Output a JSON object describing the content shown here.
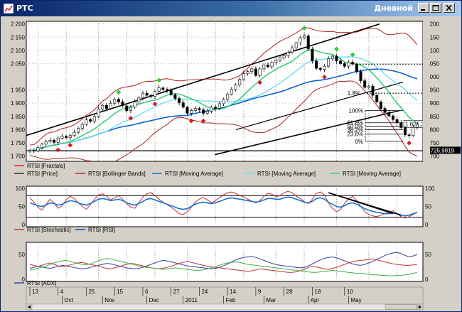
{
  "window": {
    "title": "РТС",
    "mode_label": "Дневной",
    "buttons": [
      "minimize",
      "maximize",
      "close"
    ]
  },
  "colors": {
    "price": "#222222",
    "bollinger": "#b02020",
    "ma_fast": "#33cc77",
    "ma_mid": "#66ddee",
    "ma_slow": "#1060d0",
    "fractal_up": "#22dd22",
    "fractal_down": "#ee1111",
    "stochastic": "#c03030",
    "rsi": "#1a6fd0",
    "adx_blue": "#3040a0",
    "adx_red": "#c03030",
    "adx_green": "#40b040"
  },
  "chart_data": [
    {
      "type": "candlestick",
      "panel": "price",
      "y_ticks": [
        "2 200",
        "2 150",
        "2 100",
        "2 050",
        "1 950",
        "1 900",
        "1 850",
        "1 800",
        "1 750",
        "1 700"
      ],
      "y_ticks_right": [
        "2 200",
        "2 150",
        "2 100",
        "2 050",
        "2 000",
        "1 950",
        "1 900",
        "1 850",
        "1 800",
        "1 750",
        "1 700"
      ],
      "ylim": [
        1680,
        2210
      ],
      "close": [
        1722,
        1720,
        1732,
        1745,
        1755,
        1760,
        1752,
        1768,
        1775,
        1770,
        1778,
        1790,
        1805,
        1820,
        1838,
        1832,
        1850,
        1878,
        1892,
        1880,
        1900,
        1915,
        1905,
        1890,
        1872,
        1885,
        1905,
        1920,
        1938,
        1930,
        1926,
        1945,
        1958,
        1952,
        1948,
        1932,
        1918,
        1902,
        1885,
        1862,
        1872,
        1880,
        1875,
        1862,
        1870,
        1885,
        1880,
        1898,
        1915,
        1935,
        1952,
        1970,
        1990,
        2012,
        2020,
        2030,
        2005,
        2030,
        2045,
        2038,
        2055,
        2062,
        2072,
        2080,
        2092,
        2110,
        2128,
        2148,
        2155,
        2105,
        2060,
        2032,
        2028,
        2040,
        2068,
        2078,
        2060,
        2050,
        2040,
        2055,
        2048,
        2020,
        1985,
        1960,
        1965,
        1930,
        1905,
        1880,
        1865,
        1852,
        1838,
        1826,
        1808,
        1780,
        1778,
        1808,
        1820
      ],
      "current_price_label": "1 821,36",
      "last_label": "1 725,9819",
      "fibonacci_levels": [
        "100%",
        "61.8%",
        "50.0%",
        "38.2%",
        "23.6%",
        "0%"
      ],
      "fib_extra_label": "1.8%",
      "legend": [
        "RTSI [Fractals]",
        "RTSI [Price]",
        "RTSI [Bollinger Bands]",
        "RTSI [Moving Average]",
        "RTSI [Moving Average]",
        "RTSI [Moving Average]"
      ]
    },
    {
      "type": "line",
      "panel": "oscillators",
      "y_ticks": [
        "100",
        "50",
        "0"
      ],
      "y_ticks_right": [
        "100",
        "50",
        "0"
      ],
      "ylim": [
        0,
        100
      ],
      "levels": [
        80,
        20
      ],
      "series": [
        {
          "name": "RTSI [Stochastic]",
          "values": [
            75,
            62,
            48,
            40,
            55,
            70,
            60,
            45,
            52,
            68,
            78,
            72,
            60,
            50,
            42,
            55,
            70,
            82,
            85,
            78,
            68,
            74,
            80,
            70,
            58,
            48,
            45,
            60,
            76,
            85,
            88,
            80,
            70,
            62,
            55,
            48,
            40,
            30,
            28,
            35,
            48,
            62,
            70,
            75,
            68,
            60,
            66,
            74,
            82,
            88,
            90,
            86,
            80,
            76,
            70,
            65,
            60,
            66,
            78,
            86,
            84,
            76,
            80,
            88,
            92,
            88,
            78,
            72,
            64,
            58,
            70,
            86,
            90,
            82,
            60,
            45,
            35,
            42,
            58,
            72,
            78,
            66,
            50,
            36,
            28,
            24,
            22,
            26,
            30,
            34,
            38,
            30,
            22,
            18,
            22,
            28,
            34
          ]
        },
        {
          "name": "RTSI [RSI]",
          "values": [
            60,
            56,
            52,
            50,
            54,
            60,
            58,
            54,
            56,
            62,
            66,
            64,
            60,
            56,
            54,
            58,
            64,
            70,
            72,
            70,
            66,
            68,
            70,
            66,
            60,
            56,
            54,
            58,
            64,
            70,
            72,
            68,
            64,
            60,
            56,
            52,
            48,
            44,
            42,
            44,
            50,
            56,
            60,
            62,
            60,
            58,
            60,
            64,
            68,
            72,
            74,
            72,
            70,
            68,
            66,
            64,
            62,
            64,
            68,
            72,
            72,
            70,
            70,
            74,
            76,
            74,
            70,
            66,
            62,
            60,
            64,
            72,
            74,
            70,
            62,
            56,
            50,
            48,
            52,
            58,
            60,
            56,
            50,
            44,
            40,
            36,
            34,
            32,
            30,
            30,
            32,
            30,
            26,
            24,
            26,
            30,
            34
          ]
        }
      ],
      "legend": [
        "RTSI [Stochastic]",
        "RTSI [RSI]"
      ]
    },
    {
      "type": "line",
      "panel": "adx",
      "y_ticks": [
        "50",
        "0"
      ],
      "y_ticks_right": [
        "50",
        "0"
      ],
      "ylim": [
        0,
        70
      ],
      "series": [
        {
          "values": [
            22,
            24,
            26,
            25,
            23,
            22,
            24,
            26,
            28,
            27,
            25,
            24,
            22,
            21,
            22,
            24,
            26,
            28,
            30,
            32,
            31,
            29,
            27,
            25,
            23,
            22,
            21,
            22,
            24,
            27,
            30,
            33,
            36,
            38,
            37,
            35,
            33,
            31,
            29,
            27,
            26,
            25,
            24,
            23,
            22,
            21,
            22,
            24,
            27,
            31,
            35,
            39,
            42,
            44,
            45,
            46,
            44,
            41,
            38,
            35,
            32,
            30,
            28,
            27,
            26,
            25,
            24,
            23,
            24,
            27,
            31,
            35,
            39,
            42,
            44,
            45,
            43,
            40,
            37,
            34,
            31,
            29,
            28,
            30,
            33,
            36,
            40,
            44,
            48,
            51,
            53,
            54,
            52,
            48,
            45,
            47,
            50
          ]
        },
        {
          "values": [
            30,
            28,
            26,
            28,
            31,
            33,
            30,
            27,
            25,
            27,
            29,
            31,
            33,
            34,
            32,
            30,
            28,
            26,
            24,
            22,
            21,
            23,
            25,
            28,
            30,
            32,
            31,
            29,
            27,
            25,
            23,
            22,
            21,
            22,
            24,
            26,
            29,
            32,
            34,
            36,
            34,
            32,
            30,
            28,
            26,
            25,
            24,
            23,
            22,
            21,
            20,
            19,
            18,
            17,
            16,
            17,
            19,
            21,
            20,
            19,
            18,
            17,
            16,
            15,
            14,
            14,
            15,
            17,
            20,
            24,
            26,
            25,
            23,
            21,
            20,
            22,
            24,
            27,
            30,
            33,
            35,
            37,
            38,
            39,
            40,
            41,
            39,
            37,
            35,
            33,
            31,
            30,
            29,
            28,
            28,
            29,
            30
          ]
        },
        {
          "values": [
            18,
            20,
            22,
            24,
            27,
            30,
            33,
            35,
            37,
            38,
            36,
            34,
            32,
            30,
            29,
            31,
            34,
            37,
            40,
            42,
            41,
            39,
            37,
            35,
            33,
            31,
            29,
            27,
            25,
            24,
            23,
            22,
            21,
            20,
            21,
            22,
            23,
            22,
            21,
            20,
            19,
            18,
            18,
            19,
            21,
            23,
            25,
            28,
            31,
            33,
            34,
            35,
            34,
            32,
            30,
            29,
            28,
            27,
            26,
            25,
            24,
            23,
            22,
            21,
            20,
            19,
            18,
            17,
            16,
            15,
            14,
            14,
            15,
            16,
            17,
            18,
            17,
            16,
            15,
            14,
            13,
            12,
            12,
            11,
            10,
            9,
            9,
            8,
            8,
            7,
            7,
            8,
            8,
            9,
            10,
            12,
            14
          ]
        }
      ],
      "legend": [
        "RTSI [ADX]"
      ]
    }
  ],
  "x_axis": {
    "row1": [
      "13",
      "4",
      "25",
      "15",
      "6",
      "27",
      "24",
      "14",
      "9",
      "28",
      "18",
      "10"
    ],
    "row2": [
      "Oct",
      "Nov",
      "Dec",
      "2011",
      "Feb",
      "Mar",
      "Apr",
      "May"
    ]
  }
}
